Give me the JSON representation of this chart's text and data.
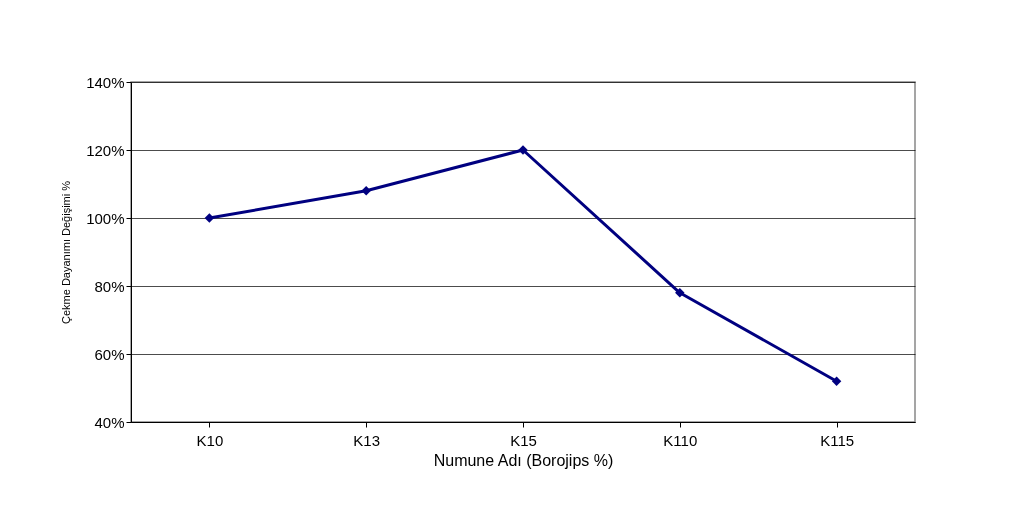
{
  "chart_data": {
    "type": "line",
    "xlabel": "Numune Adı (Borojips %)",
    "ylabel": "Çekme Dayanımı Değişimi %",
    "categories": [
      "K10",
      "K13",
      "K15",
      "K110",
      "K115"
    ],
    "series": [
      {
        "color": "#000080",
        "values": [
          100,
          108,
          120,
          78,
          52
        ]
      }
    ],
    "ylim": [
      40,
      140
    ],
    "yticks": [
      {
        "value": 40,
        "label": "40%"
      },
      {
        "value": 60,
        "label": "60%"
      },
      {
        "value": 80,
        "label": "80%"
      },
      {
        "value": 100,
        "label": "100%"
      },
      {
        "value": 120,
        "label": "120%"
      },
      {
        "value": 140,
        "label": "140%"
      }
    ],
    "grid": "y",
    "marker": "diamond",
    "line_style": "solid"
  }
}
